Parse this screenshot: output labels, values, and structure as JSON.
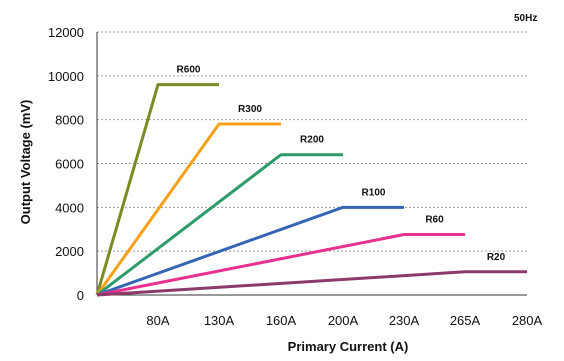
{
  "chart_data": {
    "type": "line",
    "frequency_note": "50Hz",
    "xlabel": "Primary Current (A)",
    "ylabel": "Output Voltage (mV)",
    "x_ticks": [
      "80A",
      "130A",
      "160A",
      "200A",
      "230A",
      "265A",
      "280A"
    ],
    "y_ticks": [
      "0",
      "2000",
      "4000",
      "6000",
      "8000",
      "10000",
      "12000"
    ],
    "ylim": [
      0,
      12000
    ],
    "grid": "horizontal-dashed",
    "legend": "inline-labels",
    "series": [
      {
        "name": "R600",
        "color": "#7a8a24",
        "points": [
          [
            "0A",
            0
          ],
          [
            "80A",
            9600
          ],
          [
            "130A",
            9600
          ]
        ]
      },
      {
        "name": "R300",
        "color": "#f5a21b",
        "points": [
          [
            "0A",
            0
          ],
          [
            "130A",
            7800
          ],
          [
            "160A",
            7800
          ]
        ]
      },
      {
        "name": "R200",
        "color": "#2e9b6a",
        "points": [
          [
            "0A",
            0
          ],
          [
            "160A",
            6400
          ],
          [
            "200A",
            6400
          ]
        ]
      },
      {
        "name": "R100",
        "color": "#3565b5",
        "points": [
          [
            "0A",
            0
          ],
          [
            "200A",
            4000
          ],
          [
            "230A",
            4000
          ]
        ]
      },
      {
        "name": "R60",
        "color": "#e8308f",
        "points": [
          [
            "0A",
            0
          ],
          [
            "230A",
            2760
          ],
          [
            "265A",
            2760
          ]
        ]
      },
      {
        "name": "R20",
        "color": "#8b3a6a",
        "points": [
          [
            "0A",
            0
          ],
          [
            "265A",
            1060
          ],
          [
            "280A",
            1060
          ]
        ]
      }
    ]
  }
}
